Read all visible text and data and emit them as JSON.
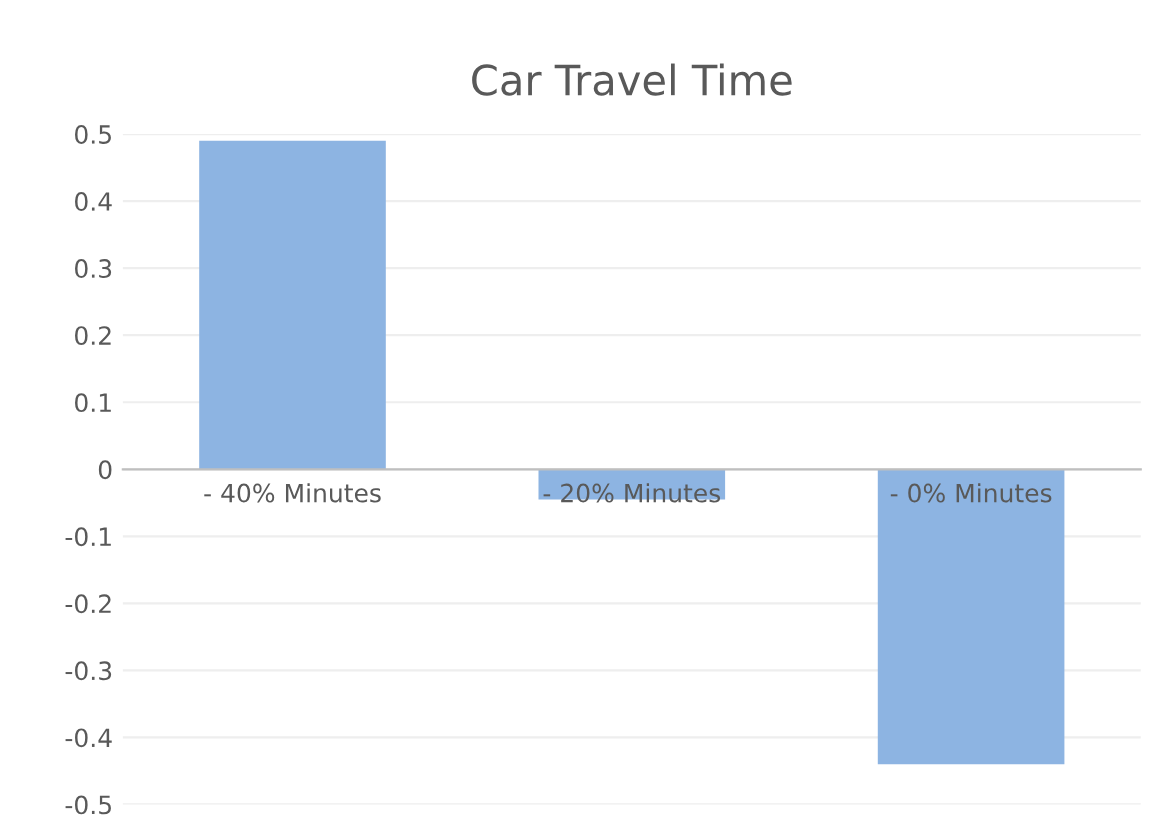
{
  "chart_data": {
    "type": "bar",
    "title": "Car Travel Time",
    "categories": [
      "- 40% Minutes",
      "- 20% Minutes",
      "- 0% Minutes"
    ],
    "values": [
      0.49,
      -0.045,
      -0.44
    ],
    "color": "#8db4e2",
    "ylim": [
      -0.5,
      0.5
    ],
    "yticks": [
      -0.5,
      -0.4,
      -0.3,
      -0.2,
      -0.1,
      0,
      0.1,
      0.2,
      0.3,
      0.4,
      0.5
    ],
    "grid": "y"
  }
}
